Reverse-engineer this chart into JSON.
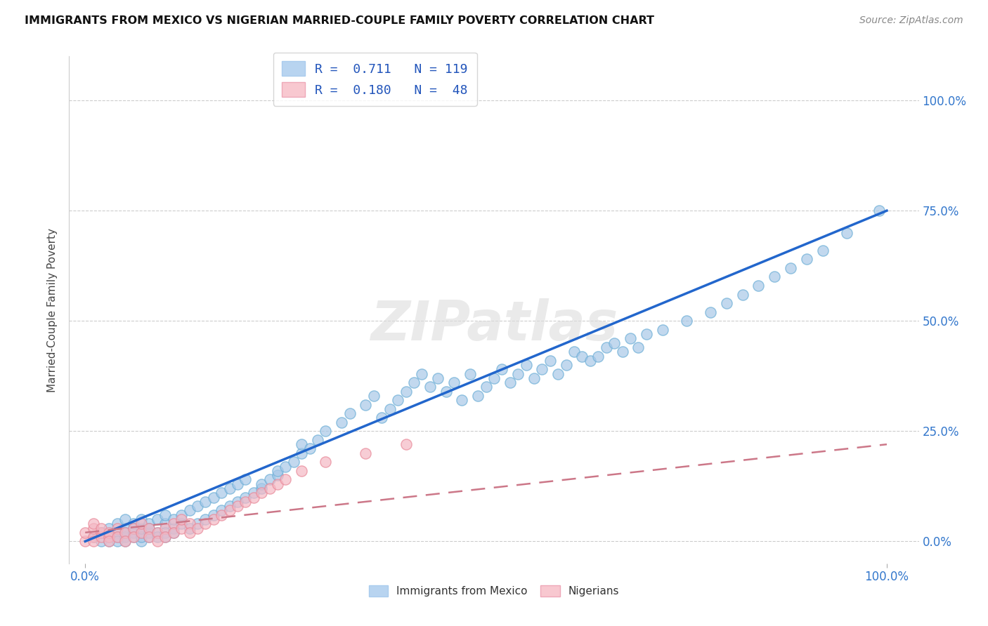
{
  "title": "IMMIGRANTS FROM MEXICO VS NIGERIAN MARRIED-COUPLE FAMILY POVERTY CORRELATION CHART",
  "source": "Source: ZipAtlas.com",
  "ylabel": "Married-Couple Family Poverty",
  "color_blue": "#a8c8e8",
  "color_pink": "#f4b8c4",
  "color_blue_edge": "#6baed6",
  "color_pink_edge": "#e88898",
  "line_blue": "#2266cc",
  "line_pink": "#cc7788",
  "legend_blue_fill": "#b8d4f0",
  "legend_pink_fill": "#f8c8d0",
  "mexico_x": [
    1,
    2,
    2,
    3,
    3,
    3,
    4,
    4,
    4,
    4,
    5,
    5,
    5,
    5,
    5,
    6,
    6,
    6,
    6,
    7,
    7,
    7,
    7,
    7,
    8,
    8,
    8,
    8,
    9,
    9,
    9,
    10,
    10,
    10,
    10,
    11,
    11,
    11,
    12,
    12,
    13,
    13,
    14,
    14,
    15,
    15,
    16,
    16,
    17,
    17,
    18,
    18,
    19,
    19,
    20,
    20,
    21,
    22,
    22,
    23,
    24,
    24,
    25,
    26,
    27,
    27,
    28,
    29,
    30,
    32,
    33,
    35,
    36,
    37,
    38,
    39,
    40,
    41,
    42,
    43,
    44,
    45,
    46,
    47,
    48,
    49,
    50,
    51,
    52,
    53,
    54,
    55,
    56,
    57,
    58,
    59,
    60,
    61,
    62,
    63,
    64,
    65,
    66,
    67,
    68,
    69,
    70,
    72,
    75,
    78,
    80,
    82,
    84,
    86,
    88,
    90,
    92,
    95,
    99
  ],
  "mexico_y": [
    1,
    0,
    2,
    1,
    3,
    0,
    2,
    1,
    4,
    0,
    3,
    1,
    2,
    5,
    0,
    2,
    4,
    1,
    3,
    0,
    2,
    1,
    3,
    5,
    2,
    4,
    1,
    3,
    2,
    5,
    1,
    4,
    2,
    6,
    1,
    3,
    5,
    2,
    4,
    6,
    3,
    7,
    4,
    8,
    5,
    9,
    6,
    10,
    7,
    11,
    8,
    12,
    9,
    13,
    10,
    14,
    11,
    12,
    13,
    14,
    15,
    16,
    17,
    18,
    20,
    22,
    21,
    23,
    25,
    27,
    29,
    31,
    33,
    28,
    30,
    32,
    34,
    36,
    38,
    35,
    37,
    34,
    36,
    32,
    38,
    33,
    35,
    37,
    39,
    36,
    38,
    40,
    37,
    39,
    41,
    38,
    40,
    43,
    42,
    41,
    42,
    44,
    45,
    43,
    46,
    44,
    47,
    48,
    50,
    52,
    54,
    56,
    58,
    60,
    62,
    64,
    66,
    70,
    75
  ],
  "nigerian_x": [
    0,
    0,
    1,
    1,
    1,
    1,
    2,
    2,
    2,
    3,
    3,
    3,
    4,
    4,
    5,
    5,
    6,
    6,
    7,
    7,
    8,
    8,
    9,
    9,
    10,
    10,
    11,
    11,
    12,
    12,
    13,
    13,
    14,
    15,
    16,
    17,
    18,
    19,
    20,
    21,
    22,
    23,
    24,
    25,
    27,
    30,
    35,
    40
  ],
  "nigerian_y": [
    0,
    2,
    1,
    3,
    0,
    4,
    2,
    1,
    3,
    1,
    2,
    0,
    3,
    1,
    2,
    0,
    3,
    1,
    2,
    4,
    3,
    1,
    2,
    0,
    3,
    1,
    4,
    2,
    3,
    5,
    4,
    2,
    3,
    4,
    5,
    6,
    7,
    8,
    9,
    10,
    11,
    12,
    13,
    14,
    16,
    18,
    20,
    22
  ],
  "blue_line_x": [
    0,
    100
  ],
  "blue_line_y": [
    0,
    75
  ],
  "pink_line_x": [
    0,
    100
  ],
  "pink_line_y": [
    2,
    22
  ],
  "xlim": [
    -2,
    104
  ],
  "ylim": [
    -5,
    110
  ],
  "yticks": [
    0,
    25,
    50,
    75,
    100
  ],
  "ytick_labels": [
    "0.0%",
    "25.0%",
    "50.0%",
    "75.0%",
    "100.0%"
  ],
  "xtick_labels": [
    "0.0%",
    "100.0%"
  ]
}
